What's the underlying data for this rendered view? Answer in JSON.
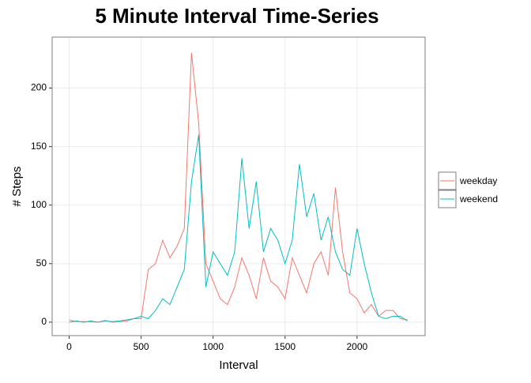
{
  "chart_data": {
    "type": "line",
    "title": "5 Minute Interval Time-Series",
    "x_label": "Interval",
    "y_label": "# Steps",
    "x": [
      0,
      50,
      100,
      150,
      200,
      250,
      300,
      350,
      400,
      450,
      500,
      550,
      600,
      650,
      700,
      750,
      800,
      850,
      900,
      950,
      1000,
      1050,
      1100,
      1150,
      1200,
      1250,
      1300,
      1350,
      1400,
      1450,
      1500,
      1550,
      1600,
      1650,
      1700,
      1750,
      1800,
      1850,
      1900,
      1950,
      2000,
      2050,
      2100,
      2150,
      2200,
      2250,
      2300,
      2350
    ],
    "series": [
      {
        "name": "weekday",
        "color": "#F8766D",
        "values": [
          2,
          0.5,
          0.5,
          0.3,
          0,
          1.5,
          0,
          0.5,
          1,
          3,
          3,
          45,
          50,
          70,
          55,
          65,
          80,
          230,
          170,
          50,
          35,
          20,
          15,
          30,
          55,
          40,
          20,
          55,
          35,
          30,
          20,
          55,
          40,
          25,
          50,
          60,
          40,
          115,
          60,
          25,
          20,
          8,
          15,
          5,
          10,
          10,
          3,
          2
        ]
      },
      {
        "name": "weekend",
        "color": "#00BFC4",
        "values": [
          0,
          1,
          0,
          1,
          0,
          1,
          0.5,
          1,
          2,
          3,
          5,
          3,
          10,
          20,
          15,
          30,
          45,
          120,
          160,
          30,
          60,
          50,
          40,
          60,
          140,
          80,
          120,
          60,
          80,
          70,
          50,
          70,
          135,
          90,
          110,
          70,
          90,
          60,
          45,
          40,
          80,
          50,
          25,
          5,
          3,
          5,
          5,
          1
        ]
      }
    ],
    "xlim": [
      -118,
      2473
    ],
    "ylim": [
      -11.5,
      243.5
    ],
    "xticks": [
      0,
      500,
      1000,
      1500,
      2000
    ],
    "yticks": [
      0,
      50,
      100,
      150,
      200
    ],
    "grid": true,
    "legend": "right"
  }
}
